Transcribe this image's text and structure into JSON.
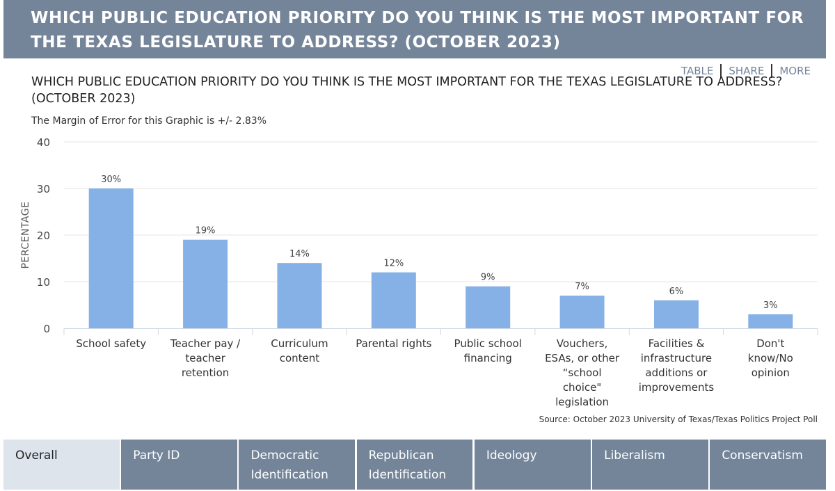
{
  "header": {
    "title": "WHICH PUBLIC EDUCATION PRIORITY DO YOU THINK IS THE MOST IMPORTANT FOR THE TEXAS LEGISLATURE TO ADDRESS? (OCTOBER 2023)"
  },
  "toolbar": {
    "table": "TABLE",
    "share": "SHARE",
    "more": "MORE"
  },
  "colors": {
    "header": "#74859a",
    "bar": "#86b1e6",
    "tab_active": "#dde4ec"
  },
  "chart_data": {
    "type": "bar",
    "title": "WHICH PUBLIC EDUCATION PRIORITY DO YOU THINK IS THE MOST IMPORTANT FOR THE TEXAS LEGISLATURE TO ADDRESS? (OCTOBER 2023)",
    "subtitle": "The Margin of Error for this Graphic is +/- 2.83%",
    "ylabel": "PERCENTAGE",
    "xlabel": "",
    "ylim": [
      0,
      40
    ],
    "yticks": [
      0,
      10,
      20,
      30,
      40
    ],
    "grid": true,
    "categories": [
      "School safety",
      "Teacher pay / teacher retention",
      "Curriculum content",
      "Parental rights",
      "Public school financing",
      "Vouchers, ESAs, or other “school choice\" legislation",
      "Facilities & infrastructure additions or improvements",
      "Don't know/No opinion"
    ],
    "category_lines": [
      [
        "School safety"
      ],
      [
        "Teacher pay /",
        "teacher",
        "retention"
      ],
      [
        "Curriculum",
        "content"
      ],
      [
        "Parental rights"
      ],
      [
        "Public school",
        "financing"
      ],
      [
        "Vouchers,",
        "ESAs, or other",
        "“school",
        "choice\"",
        "legislation"
      ],
      [
        "Facilities &",
        "infrastructure",
        "additions or",
        "improvements"
      ],
      [
        "Don't",
        "know/No",
        "opinion"
      ]
    ],
    "values": [
      30,
      19,
      14,
      12,
      9,
      7,
      6,
      3
    ],
    "value_labels": [
      "30%",
      "19%",
      "14%",
      "12%",
      "9%",
      "7%",
      "6%",
      "3%"
    ],
    "source": "Source: October 2023 University of Texas/Texas Politics Project Poll"
  },
  "tabs": [
    {
      "label": "Overall",
      "active": true
    },
    {
      "label": "Party ID",
      "active": false
    },
    {
      "label": "Democratic Identification",
      "active": false
    },
    {
      "label": "Republican Identification",
      "active": false
    },
    {
      "label": "Ideology",
      "active": false
    },
    {
      "label": "Liberalism",
      "active": false
    },
    {
      "label": "Conservatism",
      "active": false
    }
  ]
}
